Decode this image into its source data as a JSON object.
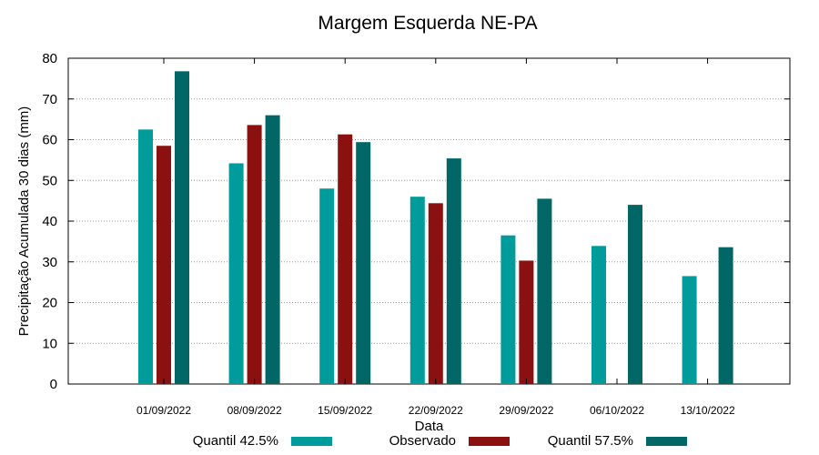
{
  "chart_data": {
    "type": "bar",
    "title": "Margem Esquerda NE-PA",
    "xlabel": "Data",
    "ylabel": "Precipitação Acumulada 30 dias (mm)",
    "ylim": [
      0,
      80
    ],
    "yticks": [
      "0",
      "10",
      "20",
      "30",
      "40",
      "50",
      "60",
      "70",
      "80"
    ],
    "grid": true,
    "legend_position": "bottom",
    "categories": [
      "01/09/2022",
      "08/09/2022",
      "15/09/2022",
      "22/09/2022",
      "29/09/2022",
      "06/10/2022",
      "13/10/2022"
    ],
    "series": [
      {
        "name": "Quantil 42.5%",
        "color": "#009b9b",
        "values": [
          62.5,
          54.2,
          48.0,
          46.0,
          36.5,
          33.9,
          26.5
        ]
      },
      {
        "name": "Observado",
        "color": "#8b1010",
        "values": [
          58.5,
          63.6,
          61.3,
          44.4,
          30.3,
          null,
          null
        ]
      },
      {
        "name": "Quantil 57.5%",
        "color": "#006666",
        "values": [
          76.8,
          66.0,
          59.4,
          55.4,
          45.5,
          44.0,
          33.6
        ]
      }
    ]
  }
}
